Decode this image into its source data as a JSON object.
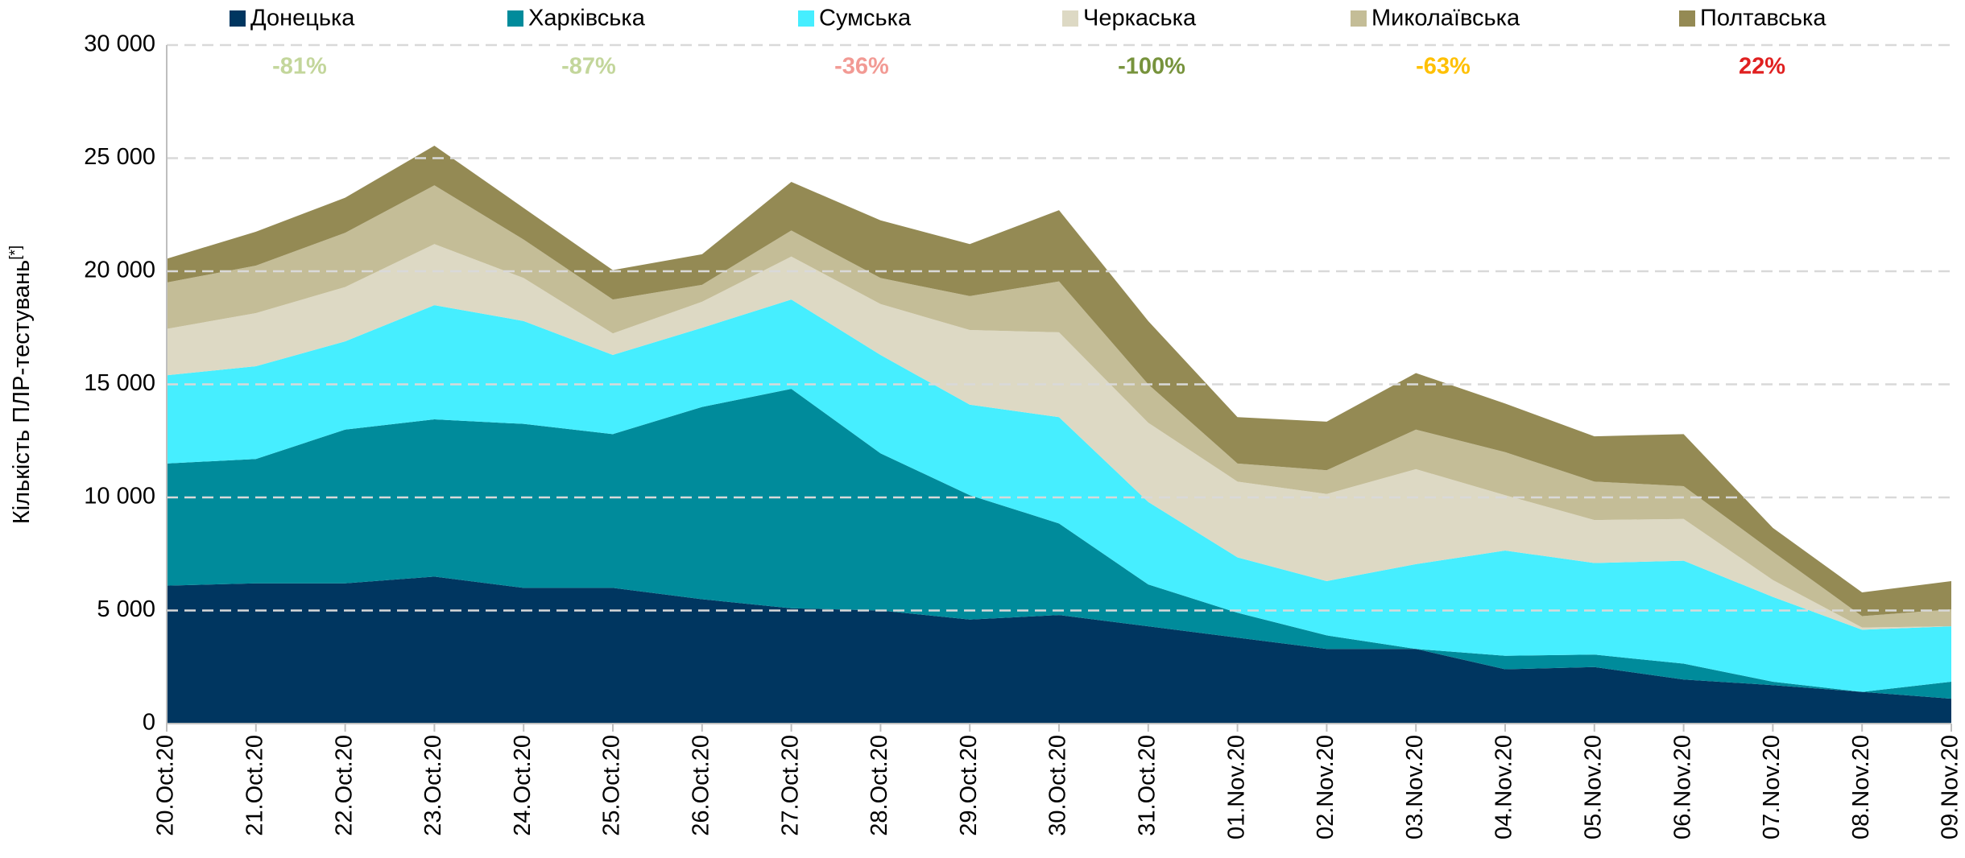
{
  "chart_data": {
    "type": "stacked_area",
    "y_label": "Кількість ПЛР-тестувань",
    "y_label_note": "[*]",
    "categories": [
      "20.Oct.20",
      "21.Oct.20",
      "22.Oct.20",
      "23.Oct.20",
      "24.Oct.20",
      "25.Oct.20",
      "26.Oct.20",
      "27.Oct.20",
      "28.Oct.20",
      "29.Oct.20",
      "30.Oct.20",
      "31.Oct.20",
      "01.Nov.20",
      "02.Nov.20",
      "03.Nov.20",
      "04.Nov.20",
      "05.Nov.20",
      "06.Nov.20",
      "07.Nov.20",
      "08.Nov.20",
      "09.Nov.20"
    ],
    "series": [
      {
        "name": "Донецька",
        "color": "#003660",
        "values": [
          6100,
          6200,
          6200,
          6500,
          6000,
          6000,
          5500,
          5100,
          5000,
          4600,
          4800,
          4300,
          3800,
          3300,
          3300,
          2400,
          2500,
          1950,
          1700,
          1400,
          1100
        ]
      },
      {
        "name": "Харківська",
        "color": "#008b9b",
        "values": [
          5400,
          5500,
          6800,
          6950,
          7250,
          6800,
          8500,
          9700,
          6950,
          5500,
          4050,
          1850,
          1100,
          600,
          0,
          600,
          550,
          700,
          150,
          0,
          750
        ]
      },
      {
        "name": "Сумська",
        "color": "#46eeff",
        "values": [
          3900,
          4100,
          3900,
          5050,
          4550,
          3500,
          3500,
          3950,
          4350,
          4000,
          4700,
          3650,
          2450,
          2400,
          3750,
          4650,
          4050,
          4550,
          3750,
          2750,
          2450
        ]
      },
      {
        "name": "Черкаська",
        "color": "#ddd9c4",
        "values": [
          2050,
          2350,
          2400,
          2700,
          1900,
          950,
          1150,
          1900,
          2250,
          3300,
          3750,
          3500,
          3350,
          3850,
          4200,
          2450,
          1900,
          1850,
          750,
          100,
          0
        ]
      },
      {
        "name": "Миколаївська",
        "color": "#c4bd97",
        "values": [
          2050,
          2100,
          2400,
          2600,
          1700,
          1500,
          750,
          1150,
          1150,
          1500,
          2250,
          1700,
          800,
          1050,
          1750,
          1900,
          1700,
          1450,
          1250,
          500,
          750
        ]
      },
      {
        "name": "Полтавська",
        "color": "#948a54",
        "values": [
          1050,
          1500,
          1550,
          1750,
          1400,
          1300,
          1350,
          2150,
          2550,
          2300,
          3150,
          2800,
          2050,
          2150,
          2500,
          2150,
          2000,
          2300,
          1050,
          1050,
          1250
        ]
      }
    ],
    "annotations": [
      {
        "text": "-81%",
        "color": "#c3d69b"
      },
      {
        "text": "-87%",
        "color": "#c3d69b"
      },
      {
        "text": "-36%",
        "color": "#f29a94"
      },
      {
        "text": "-100%",
        "color": "#77933c"
      },
      {
        "text": "-63%",
        "color": "#ffc000"
      },
      {
        "text": "22%",
        "color": "#e02020"
      }
    ],
    "ylim": [
      0,
      30000
    ],
    "yticks": [
      0,
      {
        "value": 5000,
        "label": "5 000"
      },
      {
        "value": 10000,
        "label": "10 000"
      },
      {
        "value": 15000,
        "label": "15 000"
      },
      {
        "value": 20000,
        "label": "20 000"
      },
      {
        "value": 25000,
        "label": "25 000"
      },
      {
        "value": 30000,
        "label": "30 000"
      }
    ],
    "grid": true,
    "legend": "top"
  }
}
